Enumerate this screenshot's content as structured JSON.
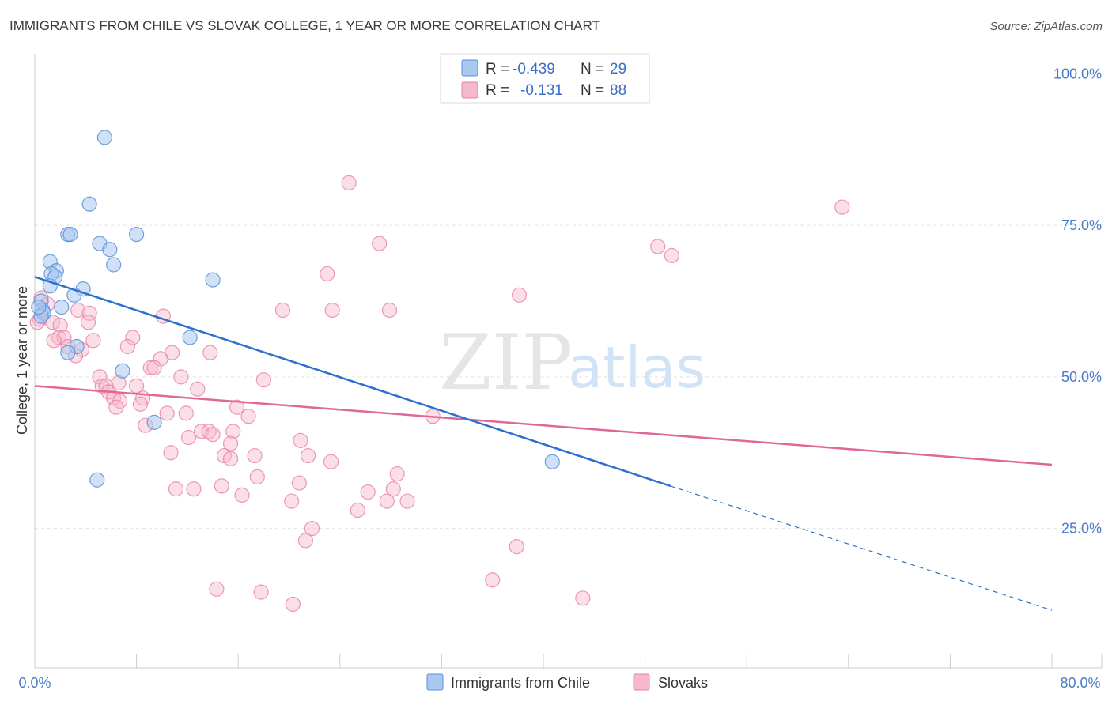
{
  "header": {
    "title": "IMMIGRANTS FROM CHILE VS SLOVAK COLLEGE, 1 YEAR OR MORE CORRELATION CHART",
    "source": "Source: ZipAtlas.com"
  },
  "watermark": {
    "zip": "ZIP",
    "atlas": "atlas"
  },
  "legend": {
    "rows": [
      {
        "r_label": "R =",
        "r_value": "-0.439",
        "n_label": "N =",
        "n_value": "29"
      },
      {
        "r_label": "R =",
        "r_value": "-0.131",
        "n_label": "N =",
        "n_value": "88"
      }
    ]
  },
  "colors": {
    "chile_fill": "#a9c8f0",
    "chile_stroke": "#5a8fd6",
    "chile_line": "#2f6fcf",
    "slovak_fill": "#f6b8cc",
    "slovak_stroke": "#e87fa2",
    "slovak_line": "#e0679a"
  },
  "chart_data": {
    "type": "scatter",
    "title": "IMMIGRANTS FROM CHILE VS SLOVAK COLLEGE, 1 YEAR OR MORE CORRELATION CHART",
    "xlabel": "",
    "ylabel": "College, 1 year or more",
    "xlim": [
      0,
      80
    ],
    "ylim": [
      2,
      102
    ],
    "x_tick_labels": [
      "0.0%",
      "80.0%"
    ],
    "y_ticks": [
      25,
      50,
      75,
      100
    ],
    "y_tick_labels": [
      "25.0%",
      "50.0%",
      "75.0%",
      "100.0%"
    ],
    "series": [
      {
        "name": "Immigrants from Chile",
        "points": [
          [
            5.5,
            89.5
          ],
          [
            4.3,
            78.5
          ],
          [
            2.6,
            73.5
          ],
          [
            2.8,
            73.5
          ],
          [
            5.1,
            72.0
          ],
          [
            8.0,
            73.5
          ],
          [
            5.9,
            71.0
          ],
          [
            6.2,
            68.5
          ],
          [
            1.2,
            69.0
          ],
          [
            1.7,
            67.5
          ],
          [
            1.3,
            67.0
          ],
          [
            1.6,
            66.5
          ],
          [
            14.0,
            66.0
          ],
          [
            1.2,
            65.0
          ],
          [
            3.8,
            64.5
          ],
          [
            3.1,
            63.5
          ],
          [
            0.5,
            62.5
          ],
          [
            2.1,
            61.5
          ],
          [
            0.6,
            61.0
          ],
          [
            0.7,
            60.5
          ],
          [
            0.5,
            60.0
          ],
          [
            12.2,
            56.5
          ],
          [
            3.3,
            55.0
          ],
          [
            2.6,
            54.0
          ],
          [
            6.9,
            51.0
          ],
          [
            9.4,
            42.5
          ],
          [
            4.9,
            33.0
          ],
          [
            40.7,
            36.0
          ],
          [
            0.3,
            61.5
          ]
        ],
        "trend": {
          "x": [
            0.0,
            50.0
          ],
          "y": [
            66.5,
            32.0
          ]
        },
        "trend_dashed": {
          "x": [
            50.0,
            80.0
          ],
          "y": [
            32.0,
            11.5
          ]
        }
      },
      {
        "name": "Slovaks",
        "points": [
          [
            24.7,
            82.0
          ],
          [
            63.5,
            78.0
          ],
          [
            27.1,
            72.0
          ],
          [
            49.0,
            71.5
          ],
          [
            50.1,
            70.0
          ],
          [
            23.0,
            67.0
          ],
          [
            38.1,
            63.5
          ],
          [
            0.5,
            63.0
          ],
          [
            1.0,
            62.0
          ],
          [
            3.4,
            61.0
          ],
          [
            19.5,
            61.0
          ],
          [
            23.4,
            61.0
          ],
          [
            27.9,
            61.0
          ],
          [
            4.3,
            60.5
          ],
          [
            10.1,
            60.0
          ],
          [
            0.4,
            59.5
          ],
          [
            1.4,
            59.0
          ],
          [
            4.2,
            59.0
          ],
          [
            2.0,
            58.5
          ],
          [
            1.9,
            56.5
          ],
          [
            2.3,
            56.5
          ],
          [
            1.5,
            56.0
          ],
          [
            7.7,
            56.5
          ],
          [
            4.6,
            56.0
          ],
          [
            2.6,
            55.0
          ],
          [
            7.3,
            55.0
          ],
          [
            3.7,
            54.5
          ],
          [
            13.8,
            54.0
          ],
          [
            10.8,
            54.0
          ],
          [
            3.2,
            53.5
          ],
          [
            9.9,
            53.0
          ],
          [
            9.1,
            51.5
          ],
          [
            9.4,
            51.5
          ],
          [
            5.1,
            50.0
          ],
          [
            11.5,
            50.0
          ],
          [
            18.0,
            49.5
          ],
          [
            6.6,
            49.0
          ],
          [
            5.3,
            48.5
          ],
          [
            5.6,
            48.5
          ],
          [
            5.8,
            47.5
          ],
          [
            8.0,
            48.5
          ],
          [
            12.8,
            48.0
          ],
          [
            6.2,
            46.5
          ],
          [
            8.5,
            46.5
          ],
          [
            8.3,
            45.5
          ],
          [
            6.7,
            46.0
          ],
          [
            6.4,
            45.0
          ],
          [
            15.9,
            45.0
          ],
          [
            10.4,
            44.0
          ],
          [
            11.9,
            44.0
          ],
          [
            16.8,
            43.5
          ],
          [
            31.3,
            43.5
          ],
          [
            8.7,
            42.0
          ],
          [
            13.1,
            41.0
          ],
          [
            13.7,
            41.0
          ],
          [
            15.6,
            41.0
          ],
          [
            12.1,
            40.0
          ],
          [
            14.0,
            40.5
          ],
          [
            20.9,
            39.5
          ],
          [
            15.4,
            39.0
          ],
          [
            10.7,
            37.5
          ],
          [
            14.9,
            37.0
          ],
          [
            15.4,
            36.5
          ],
          [
            17.3,
            37.0
          ],
          [
            21.5,
            37.0
          ],
          [
            23.3,
            36.0
          ],
          [
            17.5,
            33.5
          ],
          [
            28.5,
            34.0
          ],
          [
            11.1,
            31.5
          ],
          [
            12.5,
            31.5
          ],
          [
            14.7,
            32.0
          ],
          [
            20.8,
            32.5
          ],
          [
            26.2,
            31.0
          ],
          [
            28.2,
            31.5
          ],
          [
            16.3,
            30.5
          ],
          [
            20.2,
            29.5
          ],
          [
            27.7,
            29.5
          ],
          [
            29.3,
            29.5
          ],
          [
            25.4,
            28.0
          ],
          [
            21.8,
            25.0
          ],
          [
            21.3,
            23.0
          ],
          [
            37.9,
            22.0
          ],
          [
            36.0,
            16.5
          ],
          [
            14.3,
            15.0
          ],
          [
            17.8,
            14.5
          ],
          [
            43.1,
            13.5
          ],
          [
            20.3,
            12.5
          ],
          [
            0.2,
            59.0
          ]
        ],
        "trend": {
          "x": [
            0.0,
            80.0
          ],
          "y": [
            48.5,
            35.5
          ]
        }
      }
    ]
  },
  "bottom_legend": {
    "items": [
      {
        "label": "Immigrants from Chile"
      },
      {
        "label": "Slovaks"
      }
    ]
  }
}
